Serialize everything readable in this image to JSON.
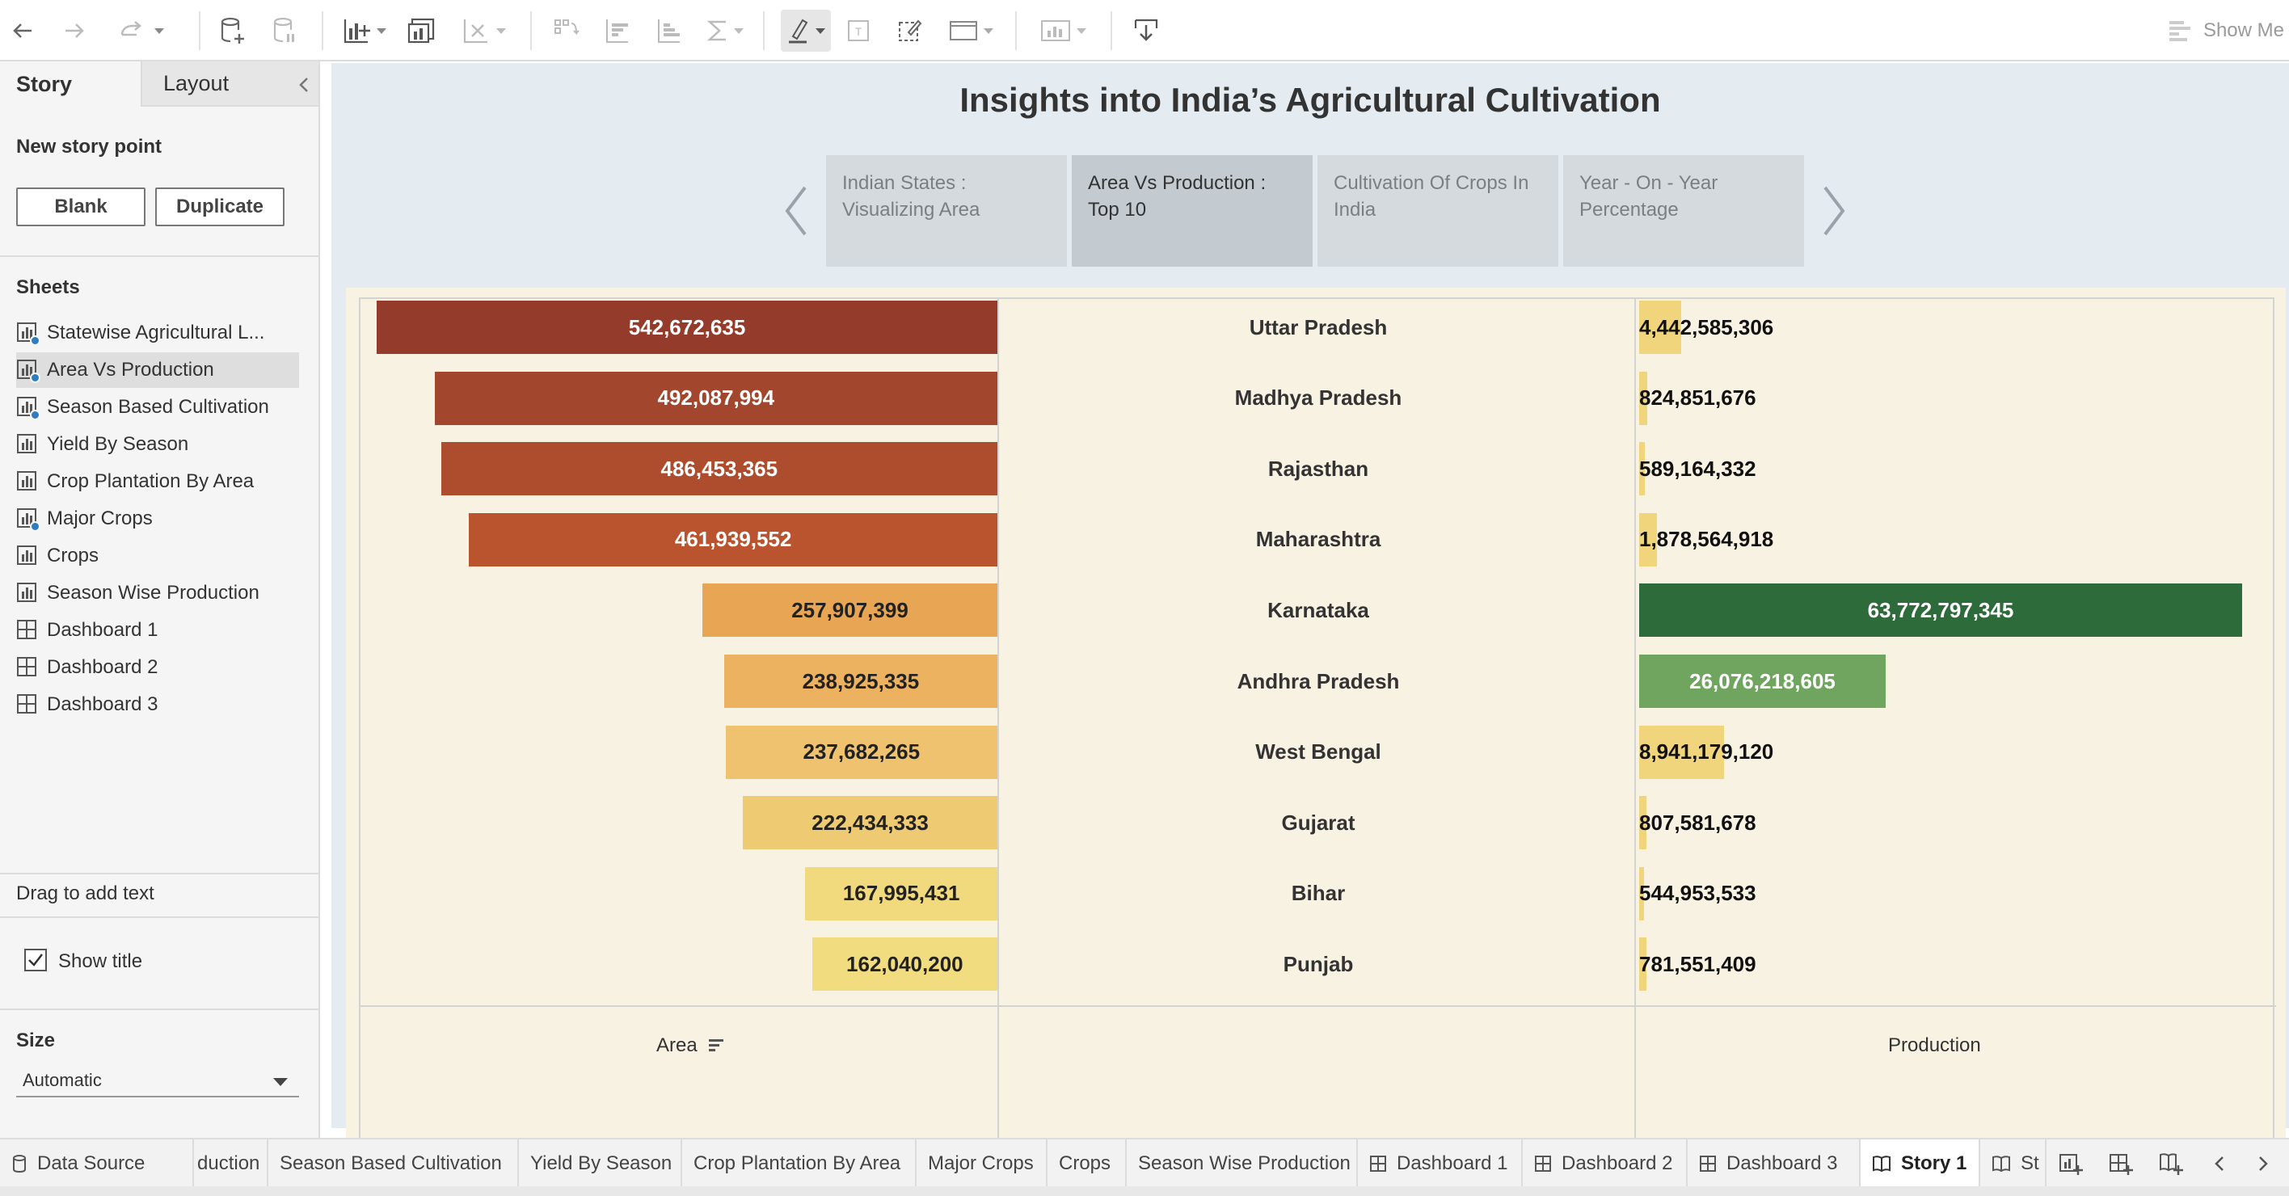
{
  "toolbar": {
    "show_me_label": "Show Me"
  },
  "left_panel": {
    "tab_story": "Story",
    "tab_layout": "Layout",
    "new_story_point": "New story point",
    "btn_blank": "Blank",
    "btn_duplicate": "Duplicate",
    "sheets_heading": "Sheets",
    "sheets": [
      {
        "label": "Statewise Agricultural L...",
        "type": "sheet",
        "used": true
      },
      {
        "label": "Area Vs Production",
        "type": "sheet",
        "used": true,
        "selected": true
      },
      {
        "label": "Season Based Cultivation",
        "type": "sheet",
        "used": true
      },
      {
        "label": "Yield By Season",
        "type": "sheet",
        "used": false
      },
      {
        "label": "Crop Plantation By Area",
        "type": "sheet",
        "used": false
      },
      {
        "label": "Major Crops",
        "type": "sheet",
        "used": true
      },
      {
        "label": "Crops",
        "type": "sheet",
        "used": false
      },
      {
        "label": "Season Wise Production",
        "type": "sheet",
        "used": false
      },
      {
        "label": "Dashboard 1",
        "type": "dashboard",
        "used": false
      },
      {
        "label": "Dashboard 2",
        "type": "dashboard",
        "used": false
      },
      {
        "label": "Dashboard 3",
        "type": "dashboard",
        "used": false
      }
    ],
    "drag_text": "Drag to add text",
    "show_title_label": "Show title",
    "show_title_checked": true,
    "size_heading": "Size",
    "size_value": "Automatic"
  },
  "story": {
    "title": "Insights into India’s Agricultural Cultivation",
    "points": [
      {
        "line1": "Indian States :",
        "line2": "Visualizing Area",
        "active": false
      },
      {
        "line1": "Area Vs Production :",
        "line2": "Top 10",
        "active": true
      },
      {
        "line1": "Cultivation Of Crops In",
        "line2": "India",
        "active": false
      },
      {
        "line1": "Year - On - Year",
        "line2": "Percentage",
        "active": false
      }
    ]
  },
  "chart_data": {
    "type": "bar",
    "categories": [
      "Uttar Pradesh",
      "Madhya Pradesh",
      "Rajasthan",
      "Maharashtra",
      "Karnataka",
      "Andhra Pradesh",
      "West Bengal",
      "Gujarat",
      "Bihar",
      "Punjab"
    ],
    "area": {
      "labels": [
        "542,672,635",
        "492,087,994",
        "486,453,365",
        "461,939,552",
        "257,907,399",
        "238,925,335",
        "237,682,265",
        "222,434,333",
        "167,995,431",
        "162,040,200"
      ],
      "values": [
        542672635,
        492087994,
        486453365,
        461939552,
        257907399,
        238925335,
        237682265,
        222434333,
        167995431,
        162040200
      ],
      "colors": [
        "#943b2b",
        "#a2472d",
        "#ae4d2e",
        "#b9542f",
        "#e8a655",
        "#ecb25f",
        "#eec26e",
        "#eecb72",
        "#f1da7e",
        "#f1dd80"
      ]
    },
    "production": {
      "labels": [
        "4,442,585,306",
        "824,851,676",
        "589,164,332",
        "1,878,564,918",
        "63,772,797,345",
        "26,076,218,605",
        "8,941,179,120",
        "807,581,678",
        "544,953,533",
        "781,551,409"
      ],
      "values": [
        4442585306,
        824851676,
        589164332,
        1878564918,
        63772797345,
        26076218605,
        8941179120,
        807581678,
        544953533,
        781551409
      ],
      "colors": [
        "#f1d57d",
        "#f1d57d",
        "#f1d57d",
        "#f1d57d",
        "#2e6b3a",
        "#6fa55e",
        "#f1d57d",
        "#f1d57d",
        "#f1d57d",
        "#f1d57d"
      ]
    },
    "xlabel_area": "Area",
    "xlabel_production": "Production"
  },
  "bottom_tabs": [
    {
      "label": "Data Source"
    },
    {
      "label": "duction"
    },
    {
      "label": "Season Based Cultivation"
    },
    {
      "label": "Yield By Season"
    },
    {
      "label": "Crop Plantation By Area"
    },
    {
      "label": "Major Crops"
    },
    {
      "label": "Crops"
    },
    {
      "label": "Season Wise Production"
    },
    {
      "label": "Dashboard 1"
    },
    {
      "label": "Dashboard 2"
    },
    {
      "label": "Dashboard 3"
    },
    {
      "label": "Story 1"
    },
    {
      "label": "St"
    }
  ]
}
